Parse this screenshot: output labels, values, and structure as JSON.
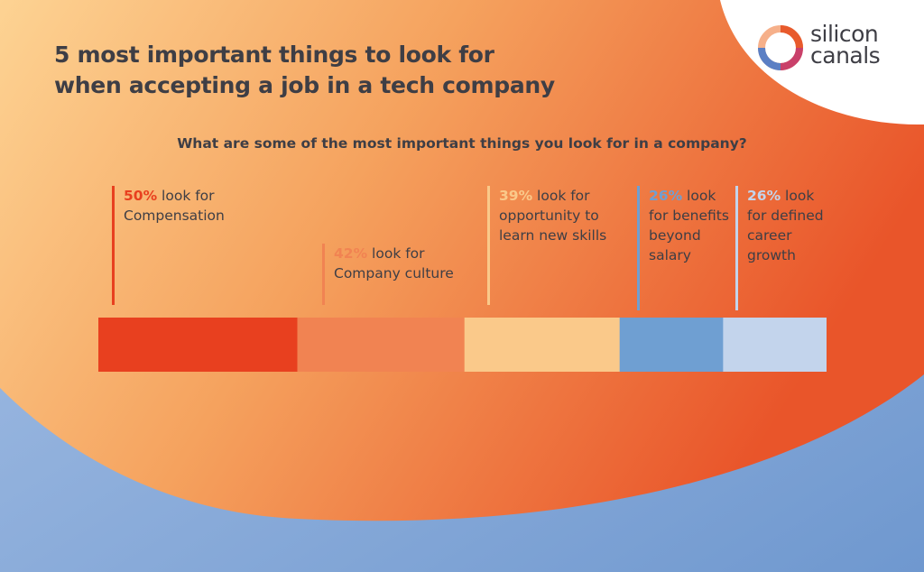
{
  "title_lines": [
    "5 most important things to look for",
    "when accepting a job in a tech company"
  ],
  "logo": {
    "line1": "silicon",
    "line2": "canals"
  },
  "question": "What are some of the most important things you look for in a company?",
  "colors": {
    "background_orange": "#eb5c2c",
    "background_peach": "#fbd08f",
    "background_blue": "#8fb0da",
    "text": "#3e3e45"
  },
  "chart_data": {
    "type": "bar",
    "orientation": "horizontal stacked",
    "categories": [
      "Compensation",
      "Company culture",
      "opportunity to learn new skills",
      "benefits beyond salary",
      "defined career growth"
    ],
    "values": [
      50,
      42,
      39,
      26,
      26
    ],
    "series": [
      {
        "value": 50,
        "pct": "50%",
        "text": "look for Compensation",
        "color": "#e8401f"
      },
      {
        "value": 42,
        "pct": "42%",
        "text": "look for Company culture",
        "color": "#f18352"
      },
      {
        "value": 39,
        "pct": "39%",
        "text": "look for opportunity to learn new skills",
        "color": "#fac98a"
      },
      {
        "value": 26,
        "pct": "26%",
        "text": "look for benefits beyond salary",
        "color": "#6f9fd2"
      },
      {
        "value": 26,
        "pct": "26%",
        "text": "look for defined career growth",
        "color": "#c3d4ec"
      }
    ],
    "title": "5 most important things to look for when accepting a job in a tech company",
    "subtitle": "What are some of the most important things you look for in a company?"
  }
}
